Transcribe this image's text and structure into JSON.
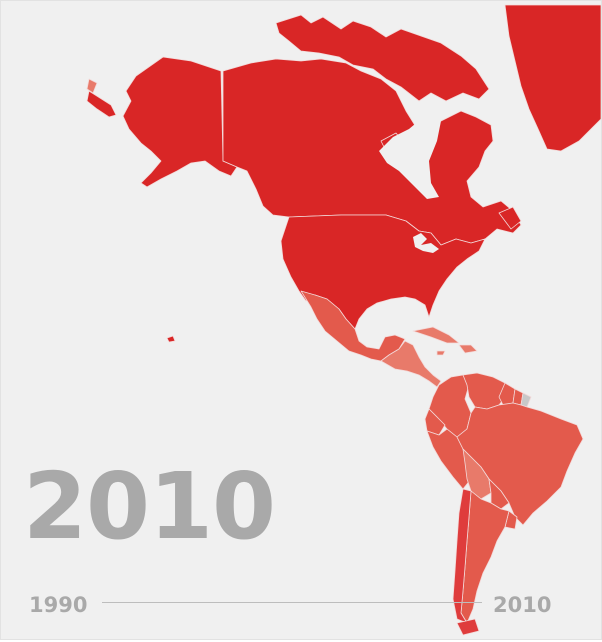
{
  "year_label": "2010",
  "slider": {
    "min_label": "1990",
    "max_label": "2010",
    "min": 1990,
    "max": 2010,
    "value": 2010
  },
  "colors": {
    "background": "#f0f0f0",
    "high": "#d92626",
    "upper_mid": "#df3c3c",
    "mid": "#e35a4c",
    "low": "#e87a6a",
    "lowest": "#f0a090",
    "no_data": "#c8c8c8",
    "year_text": "#a9a9a9"
  },
  "regions": [
    {
      "name": "canada",
      "level": "high"
    },
    {
      "name": "alaska",
      "level": "high"
    },
    {
      "name": "united-states",
      "level": "high"
    },
    {
      "name": "greenland",
      "level": "high"
    },
    {
      "name": "mexico",
      "level": "mid"
    },
    {
      "name": "central-america",
      "level": "low"
    },
    {
      "name": "caribbean",
      "level": "low"
    },
    {
      "name": "colombia",
      "level": "mid"
    },
    {
      "name": "venezuela",
      "level": "mid"
    },
    {
      "name": "guyana",
      "level": "mid"
    },
    {
      "name": "suriname",
      "level": "mid"
    },
    {
      "name": "french-guiana",
      "level": "no_data"
    },
    {
      "name": "ecuador",
      "level": "mid"
    },
    {
      "name": "peru",
      "level": "mid"
    },
    {
      "name": "brazil",
      "level": "mid"
    },
    {
      "name": "bolivia",
      "level": "low"
    },
    {
      "name": "paraguay",
      "level": "mid"
    },
    {
      "name": "uruguay",
      "level": "mid"
    },
    {
      "name": "argentina",
      "level": "mid"
    },
    {
      "name": "chile",
      "level": "upper_mid"
    }
  ]
}
